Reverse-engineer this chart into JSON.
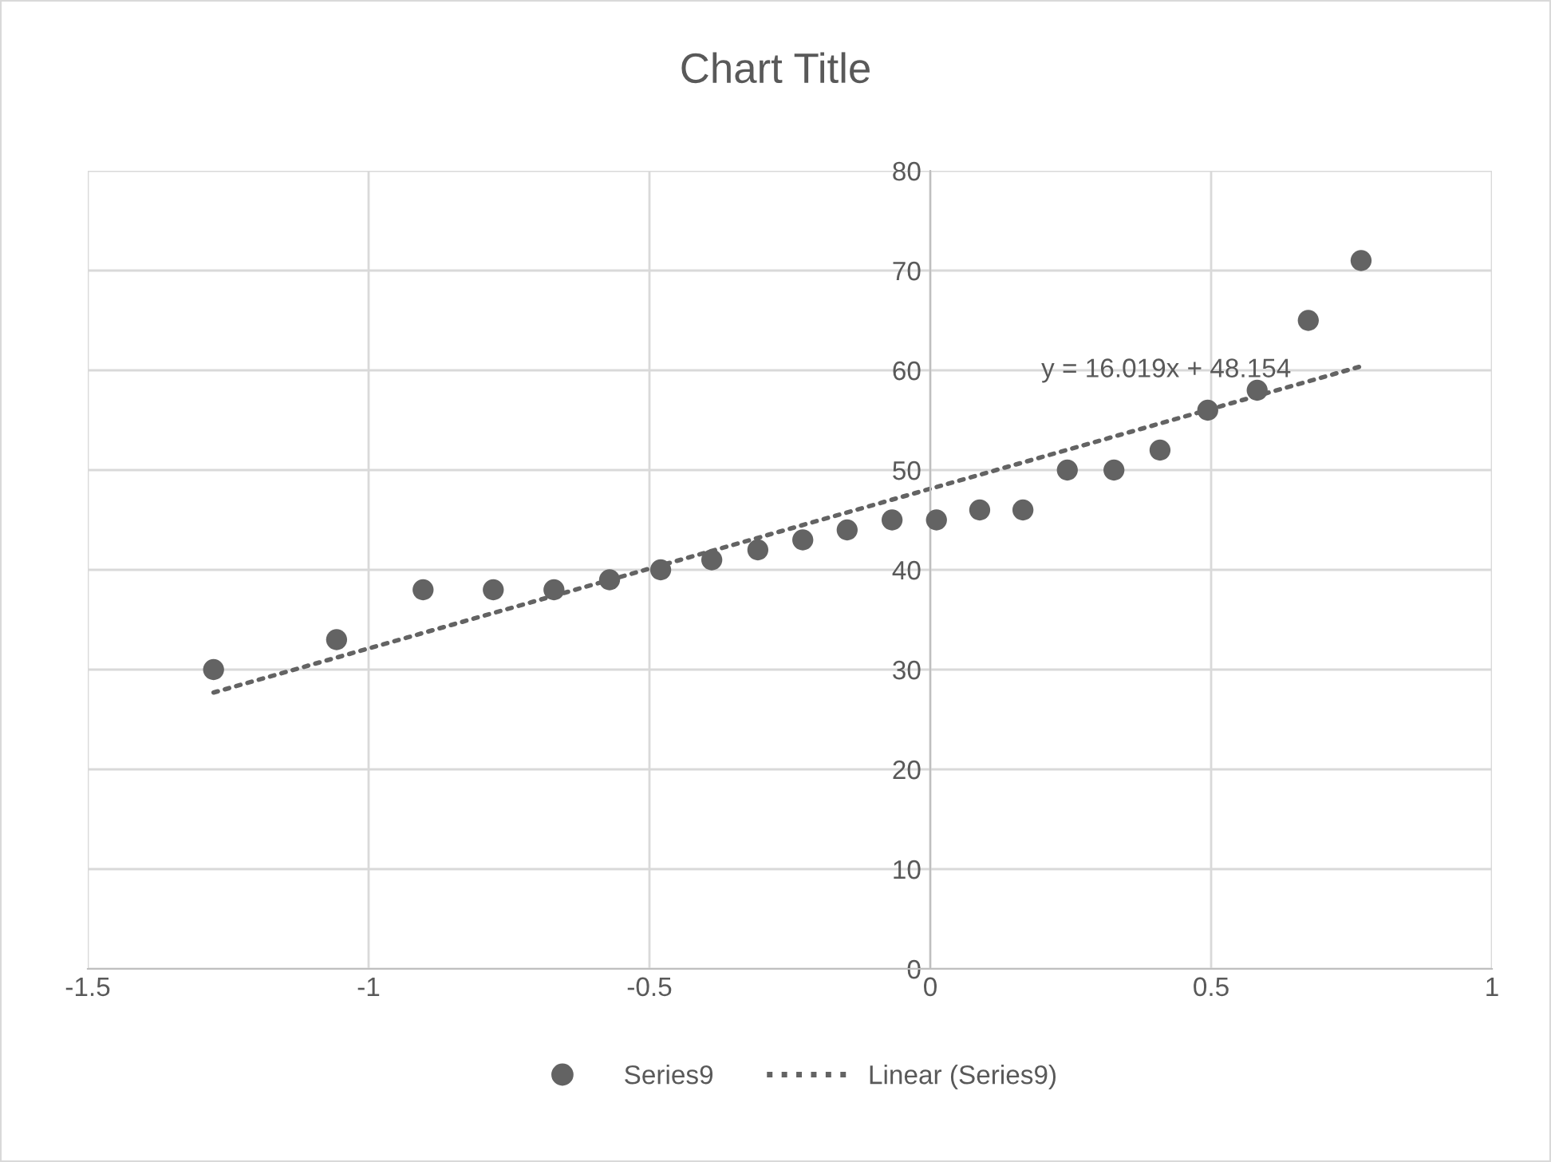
{
  "chart_data": {
    "type": "scatter",
    "title": "Chart Title",
    "series": [
      {
        "name": "Series9",
        "color": "#636363",
        "marker": "circle",
        "x": [
          -1.276,
          -1.057,
          -0.903,
          -0.778,
          -0.67,
          -0.571,
          -0.48,
          -0.389,
          -0.307,
          -0.227,
          -0.148,
          -0.068,
          0.011,
          0.088,
          0.165,
          0.244,
          0.327,
          0.409,
          0.494,
          0.582,
          0.673,
          0.767
        ],
        "values": [
          30,
          33,
          38,
          38,
          38,
          39,
          40,
          41,
          42,
          43,
          44,
          45,
          45,
          46,
          46,
          50,
          50,
          52,
          56,
          58,
          65,
          71
        ]
      },
      {
        "name": "Linear (Series9)",
        "type": "line",
        "color": "#636363",
        "line_style": "dotted",
        "x": [
          -1.276,
          0.767
        ],
        "values": [
          27.7,
          60.4
        ]
      }
    ],
    "annotations": [
      "y = 16.019x + 48.154"
    ],
    "xlim": [
      -1.5,
      1
    ],
    "xticks": [
      -1.5,
      -1,
      -0.5,
      0,
      0.5,
      1
    ],
    "ylim": [
      0,
      80
    ],
    "yticks": [
      0,
      10,
      20,
      30,
      40,
      50,
      60,
      70,
      80
    ],
    "grid": true,
    "legend": "bottom"
  }
}
